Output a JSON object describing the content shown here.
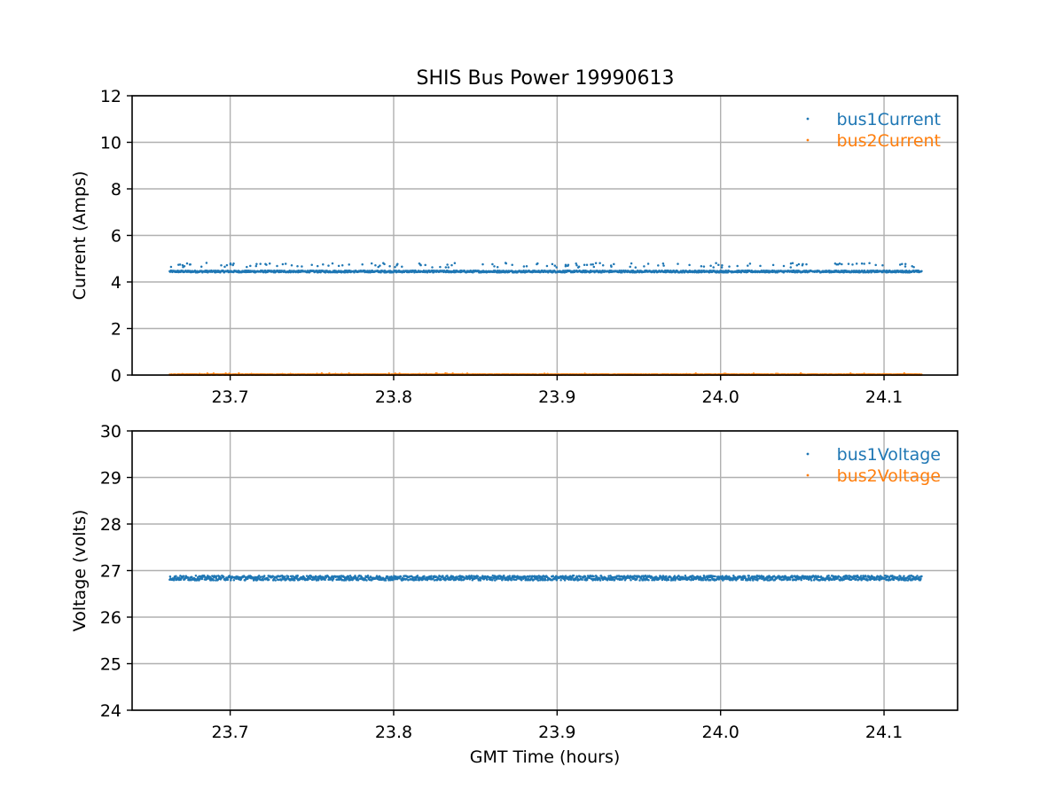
{
  "figure": {
    "title": "SHIS Bus Power 19990613",
    "background": "#ffffff"
  },
  "chart_data": [
    {
      "type": "scatter",
      "xlabel": "",
      "ylabel": "Current (Amps)",
      "xlim": [
        23.64,
        24.145
      ],
      "ylim": [
        0,
        12
      ],
      "x_ticks": [
        23.7,
        23.8,
        23.9,
        24.0,
        24.1
      ],
      "y_ticks": [
        0,
        2,
        4,
        6,
        8,
        10,
        12
      ],
      "grid": true,
      "legend_position": "top-right",
      "series": [
        {
          "name": "bus1Current",
          "color": "#1f77b4",
          "x_range": [
            23.663,
            24.123
          ],
          "typical_value": 4.45,
          "noise_amplitude": 0.04,
          "sparse_outlier_value": 4.72,
          "sparse_outlier_count": 150
        },
        {
          "name": "bus2Current",
          "color": "#ff7f0e",
          "x_range": [
            23.663,
            24.123
          ],
          "typical_value": 0.02,
          "noise_amplitude": 0.01,
          "sparse_outlier_value": 0.05,
          "sparse_outlier_count": 60
        }
      ]
    },
    {
      "type": "scatter",
      "xlabel": "GMT Time (hours)",
      "ylabel": "Voltage (volts)",
      "xlim": [
        23.64,
        24.145
      ],
      "ylim": [
        24,
        30
      ],
      "x_ticks": [
        23.7,
        23.8,
        23.9,
        24.0,
        24.1
      ],
      "y_ticks": [
        24,
        25,
        26,
        27,
        28,
        29,
        30
      ],
      "grid": true,
      "legend_position": "top-right",
      "series": [
        {
          "name": "bus1Voltage",
          "color": "#1f77b4",
          "x_range": [
            23.663,
            24.123
          ],
          "typical_value": 26.84,
          "noise_amplitude": 0.05,
          "sparse_outlier_value": 26.84,
          "sparse_outlier_count": 0
        },
        {
          "name": "bus2Voltage",
          "color": "#ff7f0e",
          "x_range": [],
          "typical_value": null,
          "noise_amplitude": 0,
          "sparse_outlier_value": null,
          "sparse_outlier_count": 0
        }
      ]
    }
  ]
}
